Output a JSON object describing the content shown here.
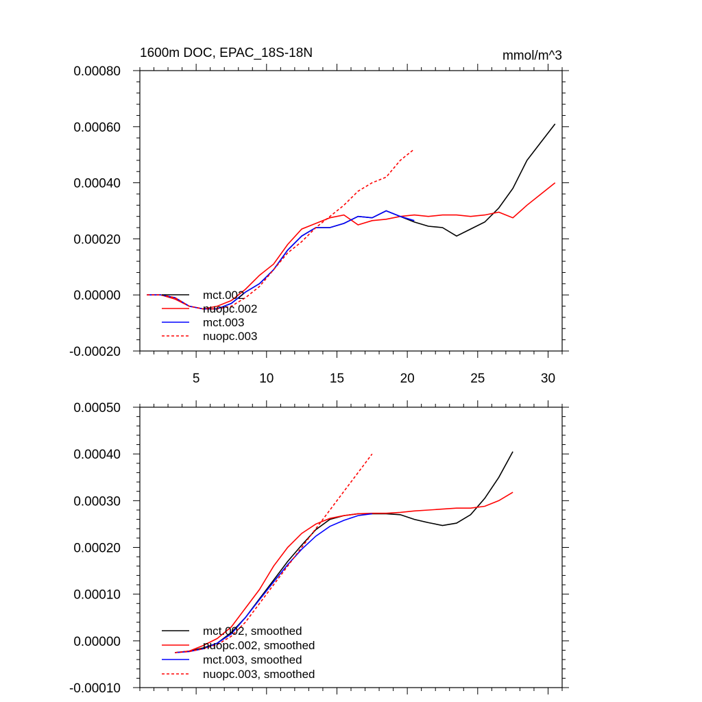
{
  "chart_data": [
    {
      "type": "line",
      "title": "1600m DOC, EPAC_18S-18N",
      "units": "mmol/m^3",
      "xlabel": "",
      "ylabel": "",
      "xlim": [
        1,
        31
      ],
      "ylim": [
        -0.0002,
        0.0008
      ],
      "xticks": [
        5,
        10,
        15,
        20,
        25,
        30
      ],
      "xtick_labels": [
        "5",
        "10",
        "15",
        "20",
        "25",
        "30"
      ],
      "yticks": [
        -0.0002,
        0,
        0.0002,
        0.0004,
        0.0006,
        0.0008
      ],
      "ytick_labels": [
        "-0.00020",
        "0.00000",
        "0.00020",
        "0.00040",
        "0.00060",
        "0.00080"
      ],
      "legend_position": "lower-left",
      "series": [
        {
          "name": "mct.002",
          "color": "#000000",
          "dash": "solid",
          "x": [
            1.5,
            2.5,
            3.5,
            4.5,
            5.5,
            6.5,
            7.5,
            8.5,
            9.5,
            10.5,
            11.5,
            12.5,
            13.5,
            14.5,
            15.5,
            16.5,
            17.5,
            18.5,
            19.5,
            20.5,
            21.5,
            22.5,
            23.5,
            24.5,
            25.5,
            26.5,
            27.5,
            28.5,
            29.5,
            30.5
          ],
          "values": [
            0,
            0,
            -1e-05,
            -4e-05,
            -5e-05,
            -5e-05,
            -3e-05,
            1e-05,
            4e-05,
            9e-05,
            0.00016,
            0.00021,
            0.00024,
            0.00024,
            0.000255,
            0.00028,
            0.000275,
            0.0003,
            0.00028,
            0.00026,
            0.000245,
            0.00024,
            0.00021,
            0.000235,
            0.00026,
            0.00031,
            0.00038,
            0.00048,
            0.000545,
            0.00061
          ]
        },
        {
          "name": "nuopc.002",
          "color": "#ff0000",
          "dash": "solid",
          "x": [
            1.5,
            2.5,
            3.5,
            4.5,
            5.5,
            6.5,
            7.5,
            8.5,
            9.5,
            10.5,
            11.5,
            12.5,
            13.5,
            14.5,
            15.5,
            16.5,
            17.5,
            18.5,
            19.5,
            20.5,
            21.5,
            22.5,
            23.5,
            24.5,
            25.5,
            26.5,
            27.5,
            28.5,
            29.5,
            30.5
          ],
          "values": [
            0,
            0,
            -1.5e-05,
            -4e-05,
            -5e-05,
            -4e-05,
            -2e-05,
            2e-05,
            7e-05,
            0.00011,
            0.00018,
            0.000235,
            0.000255,
            0.000275,
            0.000285,
            0.00025,
            0.000265,
            0.00027,
            0.00028,
            0.000285,
            0.00028,
            0.000285,
            0.000285,
            0.00028,
            0.000285,
            0.000295,
            0.000275,
            0.00032,
            0.00036,
            0.0004
          ]
        },
        {
          "name": "mct.003",
          "color": "#0000ff",
          "dash": "solid",
          "x": [
            1.5,
            2.5,
            3.5,
            4.5,
            5.5,
            6.5,
            7.5,
            8.5,
            9.5,
            10.5,
            11.5,
            12.5,
            13.5,
            14.5,
            15.5,
            16.5,
            17.5,
            18.5,
            19.5,
            20.5
          ],
          "values": [
            0,
            0,
            -1e-05,
            -4e-05,
            -5e-05,
            -5e-05,
            -3e-05,
            1e-05,
            4e-05,
            9e-05,
            0.00016,
            0.00021,
            0.00024,
            0.00024,
            0.000255,
            0.00028,
            0.000275,
            0.0003,
            0.00028,
            0.000265
          ]
        },
        {
          "name": "nuopc.003",
          "color": "#ff0000",
          "dash": "dashed",
          "x": [
            1.5,
            2.5,
            3.5,
            4.5,
            5.5,
            6.5,
            7.5,
            8.5,
            9.5,
            10.5,
            11.5,
            12.5,
            13.5,
            14.5,
            15.5,
            16.5,
            17.5,
            18.5,
            19.5,
            20.5
          ],
          "values": [
            0,
            0,
            -1e-05,
            -4e-05,
            -5e-05,
            -5e-05,
            -4e-05,
            -1e-05,
            3e-05,
            9e-05,
            0.00015,
            0.00019,
            0.00024,
            0.00028,
            0.00032,
            0.00037,
            0.0004,
            0.00042,
            0.00048,
            0.00052
          ]
        }
      ]
    },
    {
      "type": "line",
      "title": "",
      "xlabel": "",
      "ylabel": "",
      "xlim": [
        1,
        31
      ],
      "ylim": [
        -0.0001,
        0.0005
      ],
      "xticks": [
        5,
        10,
        15,
        20,
        25,
        30
      ],
      "xtick_labels": [],
      "yticks": [
        -0.0001,
        0,
        0.0001,
        0.0002,
        0.0003,
        0.0004,
        0.0005
      ],
      "ytick_labels": [
        "-0.00010",
        "0.00000",
        "0.00010",
        "0.00020",
        "0.00030",
        "0.00040",
        "0.00050"
      ],
      "legend_position": "lower-left",
      "series": [
        {
          "name": "mct.002, smoothed",
          "color": "#000000",
          "dash": "solid",
          "x": [
            3.5,
            4.5,
            5.5,
            6.5,
            7.5,
            8.5,
            9.5,
            10.5,
            11.5,
            12.5,
            13.5,
            14.5,
            15.5,
            16.5,
            17.5,
            18.5,
            19.5,
            20.5,
            21.5,
            22.5,
            23.5,
            24.5,
            25.5,
            26.5,
            27.5
          ],
          "values": [
            -2.5e-05,
            -2.2e-05,
            -1.5e-05,
            -5e-06,
            1.8e-05,
            5e-05,
            9e-05,
            0.00013,
            0.00017,
            0.000205,
            0.000238,
            0.00026,
            0.000268,
            0.000272,
            0.000272,
            0.000272,
            0.00027,
            0.00026,
            0.000253,
            0.000247,
            0.000252,
            0.00027,
            0.000305,
            0.00035,
            0.000405
          ]
        },
        {
          "name": "nuopc.002, smoothed",
          "color": "#ff0000",
          "dash": "solid",
          "x": [
            3.5,
            4.5,
            5.5,
            6.5,
            7.5,
            8.5,
            9.5,
            10.5,
            11.5,
            12.5,
            13.5,
            14.5,
            15.5,
            16.5,
            17.5,
            18.5,
            19.5,
            20.5,
            21.5,
            22.5,
            23.5,
            24.5,
            25.5,
            26.5,
            27.5
          ],
          "values": [
            -2.5e-05,
            -2.2e-05,
            -1e-05,
            5e-06,
            3e-05,
            7e-05,
            0.00011,
            0.00016,
            0.0002,
            0.00023,
            0.00025,
            0.000262,
            0.000268,
            0.000272,
            0.000273,
            0.000273,
            0.000275,
            0.000278,
            0.00028,
            0.000282,
            0.000284,
            0.000284,
            0.000288,
            0.0003,
            0.000318
          ]
        },
        {
          "name": "mct.003, smoothed",
          "color": "#0000ff",
          "dash": "solid",
          "x": [
            3.5,
            4.5,
            5.5,
            6.5,
            7.5,
            8.5,
            9.5,
            10.5,
            11.5,
            12.5,
            13.5,
            14.5,
            15.5,
            16.5,
            17.5
          ],
          "values": [
            -2.5e-05,
            -2.3e-05,
            -1.7e-05,
            -5e-06,
            1.5e-05,
            5e-05,
            8.8e-05,
            0.000126,
            0.000163,
            0.000196,
            0.000224,
            0.000245,
            0.000258,
            0.000268,
            0.000272
          ]
        },
        {
          "name": "nuopc.003, smoothed",
          "color": "#ff0000",
          "dash": "dashed",
          "x": [
            3.5,
            4.5,
            5.5,
            6.5,
            7.5,
            8.5,
            9.5,
            10.5,
            11.5,
            12.5,
            13.5,
            14.5,
            15.5,
            16.5,
            17.5
          ],
          "values": [
            -2.5e-05,
            -2.3e-05,
            -1.7e-05,
            -8e-06,
            1e-05,
            4e-05,
            8e-05,
            0.00012,
            0.00016,
            0.0002,
            0.00024,
            0.00028,
            0.00032,
            0.00036,
            0.0004
          ]
        }
      ]
    }
  ]
}
